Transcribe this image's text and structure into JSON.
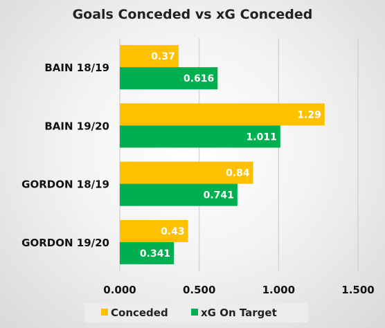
{
  "chart_data": {
    "type": "bar",
    "orientation": "horizontal",
    "title": "Goals Conceded vs xG Conceded",
    "categories": [
      "BAIN 18/19",
      "BAIN 19/20",
      "GORDON 18/19",
      "GORDON 19/20"
    ],
    "series": [
      {
        "name": "Conceded",
        "values": [
          0.37,
          1.29,
          0.84,
          0.43
        ],
        "color": "#FFC000"
      },
      {
        "name": "xG On Target",
        "values": [
          0.616,
          1.011,
          0.741,
          0.341
        ],
        "color": "#00B050"
      }
    ],
    "value_labels": [
      [
        "0.37",
        "1.29",
        "0.84",
        "0.43"
      ],
      [
        "0.616",
        "1.011",
        "0.741",
        "0.341"
      ]
    ],
    "xlim": [
      0,
      1.5
    ],
    "xticks": [
      0,
      0.5,
      1,
      1.5
    ],
    "xtick_labels": [
      "0.000",
      "0.500",
      "1.000",
      "1.500"
    ],
    "grid": true,
    "legend_position": "bottom"
  }
}
